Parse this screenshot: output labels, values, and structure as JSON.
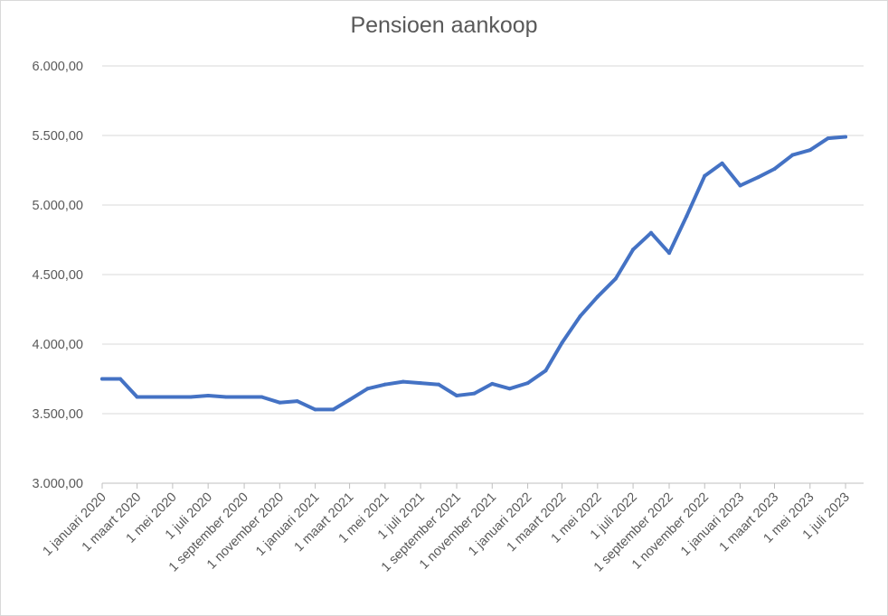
{
  "chart_data": {
    "type": "line",
    "title": "Pensioen aankoop",
    "xlabel": "",
    "ylabel": "",
    "ylim": [
      3000,
      6000
    ],
    "y_ticks": [
      3000,
      3500,
      4000,
      4500,
      5000,
      5500,
      6000
    ],
    "y_tick_labels": [
      "3.000,00",
      "3.500,00",
      "4.000,00",
      "4.500,00",
      "5.000,00",
      "5.500,00",
      "6.000,00"
    ],
    "x_tick_dates": [
      "2020-01-01",
      "2020-03-01",
      "2020-05-01",
      "2020-07-01",
      "2020-09-01",
      "2020-11-01",
      "2021-01-01",
      "2021-03-01",
      "2021-05-01",
      "2021-07-01",
      "2021-09-01",
      "2021-11-01",
      "2022-01-01",
      "2022-03-01",
      "2022-05-01",
      "2022-07-01",
      "2022-09-01",
      "2022-11-01",
      "2023-01-01",
      "2023-03-01",
      "2023-05-01",
      "2023-07-01"
    ],
    "x_tick_labels": [
      "1 januari 2020",
      "1 maart 2020",
      "1 mei 2020",
      "1 juli 2020",
      "1 september 2020",
      "1 november 2020",
      "1 januari 2021",
      "1 maart 2021",
      "1 mei 2021",
      "1 juli 2021",
      "1 september 2021",
      "1 november 2021",
      "1 januari 2022",
      "1 maart 2022",
      "1 mei 2022",
      "1 juli 2022",
      "1 september 2022",
      "1 november 2022",
      "1 januari 2023",
      "1 maart 2023",
      "1 mei 2023",
      "1 juli 2023"
    ],
    "grid": true,
    "legend": "none",
    "line_color": "#4472c4",
    "series": [
      {
        "x": [
          "2020-01-01",
          "2020-02-01",
          "2020-03-01",
          "2020-04-01",
          "2020-05-01",
          "2020-06-01",
          "2020-07-01",
          "2020-08-01",
          "2020-09-01",
          "2020-10-01",
          "2020-11-01",
          "2020-12-01",
          "2021-01-01",
          "2021-02-01",
          "2021-03-01",
          "2021-04-01",
          "2021-05-01",
          "2021-06-01",
          "2021-07-01",
          "2021-08-01",
          "2021-09-01",
          "2021-10-01",
          "2021-11-01",
          "2021-12-01",
          "2022-01-01",
          "2022-02-01",
          "2022-03-01",
          "2022-04-01",
          "2022-05-01",
          "2022-06-01",
          "2022-07-01",
          "2022-08-01",
          "2022-09-01",
          "2022-10-01",
          "2022-11-01",
          "2022-12-01",
          "2023-01-01",
          "2023-02-01",
          "2023-03-01",
          "2023-04-01",
          "2023-05-01",
          "2023-06-01",
          "2023-07-01"
        ],
        "values": [
          3750,
          3750,
          3620,
          3620,
          3620,
          3620,
          3630,
          3620,
          3620,
          3620,
          3580,
          3590,
          3530,
          3530,
          3600,
          3680,
          3710,
          3730,
          3720,
          3710,
          3630,
          3645,
          3715,
          3680,
          3720,
          3810,
          4010,
          4200,
          4340,
          4470,
          4680,
          4800,
          4655,
          4920,
          5210,
          5300,
          5140,
          5200,
          5260,
          5360,
          5395,
          5480,
          5490
        ]
      }
    ]
  }
}
